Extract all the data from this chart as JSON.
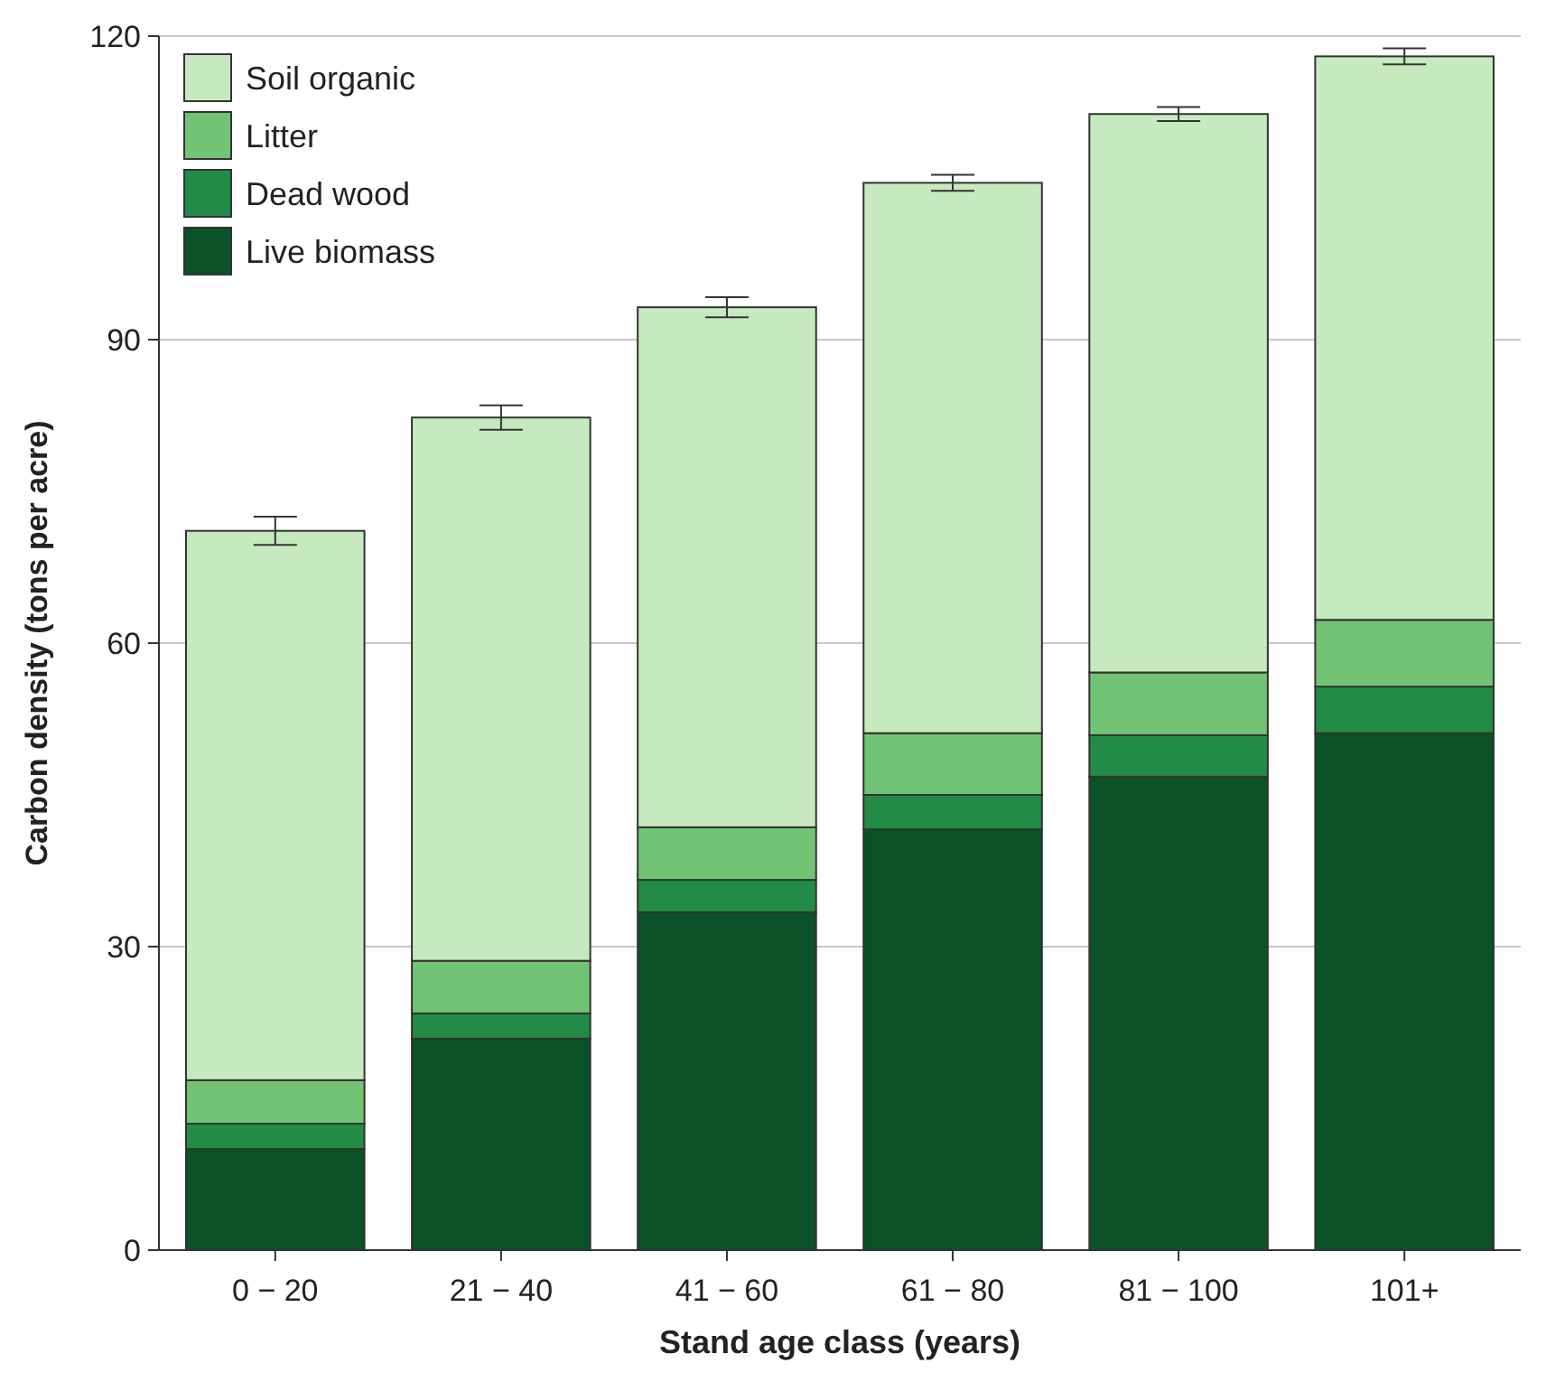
{
  "chart_data": {
    "type": "bar",
    "stacked": true,
    "xlabel": "Stand age class (years)",
    "ylabel": "Carbon density (tons per acre)",
    "categories": [
      "0 − 20",
      "21 − 40",
      "41 − 60",
      "61 − 80",
      "81 − 100",
      "101+"
    ],
    "series": [
      {
        "name": "Live biomass",
        "color": "#0b5228",
        "values": [
          10,
          20.9,
          33.4,
          41.6,
          46.8,
          51.1
        ]
      },
      {
        "name": "Dead wood",
        "color": "#228b45",
        "values": [
          2.5,
          2.5,
          3.2,
          3.4,
          4.1,
          4.6
        ]
      },
      {
        "name": "Litter",
        "color": "#72c475",
        "values": [
          4.3,
          5.2,
          5.2,
          6.1,
          6.2,
          6.6
        ]
      },
      {
        "name": "Soil organic",
        "color": "#c7e9c0",
        "values": [
          54.3,
          53.7,
          51.4,
          54.4,
          55.2,
          55.7
        ],
        "errors": [
          1.4,
          1.2,
          1,
          0.8,
          0.7,
          0.8
        ]
      }
    ],
    "ylim": [
      0,
      120
    ],
    "yticks": [
      0,
      30,
      60,
      90,
      120
    ],
    "grid": "y",
    "legend": "top left"
  }
}
